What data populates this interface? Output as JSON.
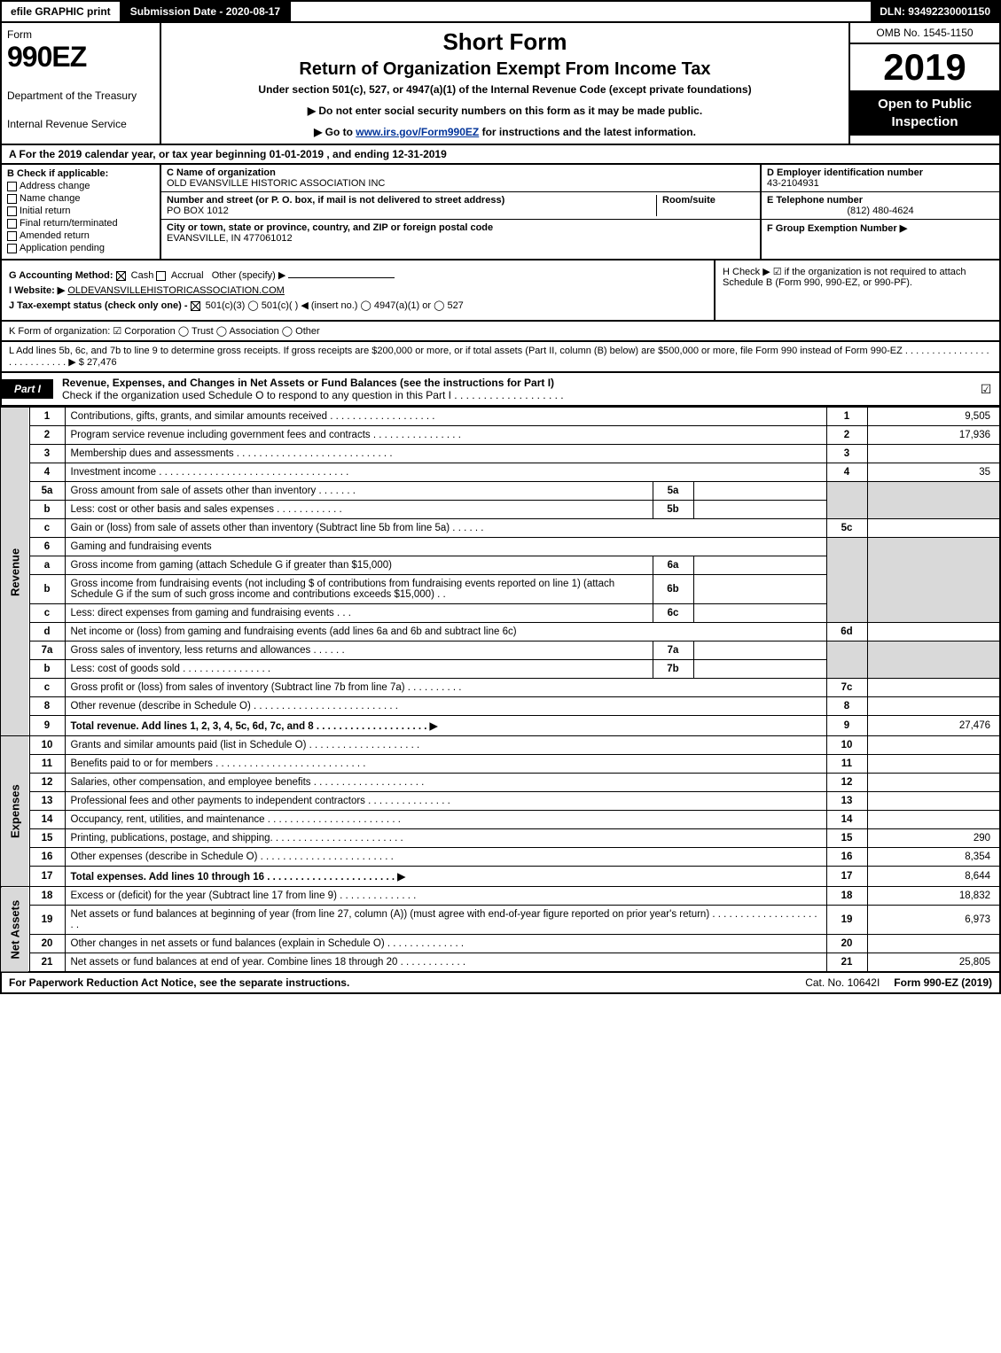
{
  "topbar": {
    "efile": "efile GRAPHIC print",
    "submission": "Submission Date - 2020-08-17",
    "dln": "DLN: 93492230001150"
  },
  "header": {
    "form_word": "Form",
    "form_no": "990EZ",
    "dept1": "Department of the Treasury",
    "dept2": "Internal Revenue Service",
    "title1": "Short Form",
    "title2": "Return of Organization Exempt From Income Tax",
    "subtitle": "Under section 501(c), 527, or 4947(a)(1) of the Internal Revenue Code (except private foundations)",
    "note1": "▶ Do not enter social security numbers on this form as it may be made public.",
    "note2_pre": "▶ Go to ",
    "note2_link": "www.irs.gov/Form990EZ",
    "note2_post": " for instructions and the latest information.",
    "omb": "OMB No. 1545-1150",
    "year": "2019",
    "open": "Open to Public Inspection"
  },
  "row_a": "A For the 2019 calendar year, or tax year beginning 01-01-2019 , and ending 12-31-2019",
  "col_b": {
    "title": "B Check if applicable:",
    "opts": [
      "Address change",
      "Name change",
      "Initial return",
      "Final return/terminated",
      "Amended return",
      "Application pending"
    ]
  },
  "col_c": {
    "c_label": "C Name of organization",
    "c_name": "OLD EVANSVILLE HISTORIC ASSOCIATION INC",
    "addr_label": "Number and street (or P. O. box, if mail is not delivered to street address)",
    "addr": "PO BOX 1012",
    "room_label": "Room/suite",
    "city_label": "City or town, state or province, country, and ZIP or foreign postal code",
    "city": "EVANSVILLE, IN  477061012"
  },
  "col_de": {
    "d_label": "D Employer identification number",
    "d_val": "43-2104931",
    "e_label": "E Telephone number",
    "e_val": "(812) 480-4624",
    "f_label": "F Group Exemption Number ▶"
  },
  "below": {
    "g": "G Accounting Method:",
    "g_cash": "Cash",
    "g_accrual": "Accrual",
    "g_other": "Other (specify) ▶",
    "i": "I Website: ▶",
    "i_val": "OLDEVANSVILLEHISTORICASSOCIATION.COM",
    "j": "J Tax-exempt status (check only one) -",
    "j_opts": "501(c)(3)   ◯ 501(c)( ) ◀ (insert no.)  ◯ 4947(a)(1) or  ◯ 527",
    "h": "H Check ▶ ☑ if the organization is not required to attach Schedule B (Form 990, 990-EZ, or 990-PF)."
  },
  "k": "K Form of organization:   ☑ Corporation   ◯ Trust   ◯ Association   ◯ Other",
  "l": {
    "text": "L Add lines 5b, 6c, and 7b to line 9 to determine gross receipts. If gross receipts are $200,000 or more, or if total assets (Part II, column (B) below) are $500,000 or more, file Form 990 instead of Form 990-EZ  .  .  .  .  .  .  .  .  .  .  .  .  .  .  .  .  .  .  .  .  .  .  .  .  .  .  .   ▶ $ ",
    "val": "27,476"
  },
  "part1": {
    "tag": "Part I",
    "title": "Revenue, Expenses, and Changes in Net Assets or Fund Balances (see the instructions for Part I)",
    "sub": "Check if the organization used Schedule O to respond to any question in this Part I  .  .  .  .  .  .  .  .  .  .  .  .  .  .  .  .  .  .  .",
    "check": "☑"
  },
  "sections": {
    "revenue": "Revenue",
    "expenses": "Expenses",
    "netassets": "Net Assets"
  },
  "lines": {
    "1": {
      "d": "Contributions, gifts, grants, and similar amounts received  .  .  .  .  .  .  .  .  .  .  .  .  .  .  .  .  .  .  .",
      "n": "1",
      "v": "9,505"
    },
    "2": {
      "d": "Program service revenue including government fees and contracts  .  .  .  .  .  .  .  .  .  .  .  .  .  .  .  .",
      "n": "2",
      "v": "17,936"
    },
    "3": {
      "d": "Membership dues and assessments  .  .  .  .  .  .  .  .  .  .  .  .  .  .  .  .  .  .  .  .  .  .  .  .  .  .  .  .",
      "n": "3",
      "v": ""
    },
    "4": {
      "d": "Investment income  .  .  .  .  .  .  .  .  .  .  .  .  .  .  .  .  .  .  .  .  .  .  .  .  .  .  .  .  .  .  .  .  .  .",
      "n": "4",
      "v": "35"
    },
    "5a": {
      "d": "Gross amount from sale of assets other than inventory  .  .  .  .  .  .  .",
      "sn": "5a"
    },
    "5b": {
      "d": "Less: cost or other basis and sales expenses  .  .  .  .  .  .  .  .  .  .  .  .",
      "sn": "5b"
    },
    "5c": {
      "d": "Gain or (loss) from sale of assets other than inventory (Subtract line 5b from line 5a)  .  .  .  .  .  .",
      "n": "5c",
      "v": ""
    },
    "6": {
      "d": "Gaming and fundraising events"
    },
    "6a": {
      "d": "Gross income from gaming (attach Schedule G if greater than $15,000)",
      "sn": "6a"
    },
    "6b": {
      "d": "Gross income from fundraising events (not including $                      of contributions from fundraising events reported on line 1) (attach Schedule G if the sum of such gross income and contributions exceeds $15,000)    .  .",
      "sn": "6b"
    },
    "6c": {
      "d": "Less: direct expenses from gaming and fundraising events     .  .  .",
      "sn": "6c"
    },
    "6d": {
      "d": "Net income or (loss) from gaming and fundraising events (add lines 6a and 6b and subtract line 6c)",
      "n": "6d",
      "v": ""
    },
    "7a": {
      "d": "Gross sales of inventory, less returns and allowances  .  .  .  .  .  .",
      "sn": "7a"
    },
    "7b": {
      "d": "Less: cost of goods sold       .  .  .  .  .  .  .  .  .  .  .  .  .  .  .  .",
      "sn": "7b"
    },
    "7c": {
      "d": "Gross profit or (loss) from sales of inventory (Subtract line 7b from line 7a)  .  .  .  .  .  .  .  .  .  .",
      "n": "7c",
      "v": ""
    },
    "8": {
      "d": "Other revenue (describe in Schedule O)  .  .  .  .  .  .  .  .  .  .  .  .  .  .  .  .  .  .  .  .  .  .  .  .  .  .",
      "n": "8",
      "v": ""
    },
    "9": {
      "d": "Total revenue. Add lines 1, 2, 3, 4, 5c, 6d, 7c, and 8  .  .  .  .  .  .  .  .  .  .  .  .  .  .  .  .  .  .  .  . ▶",
      "n": "9",
      "v": "27,476",
      "bold": true
    },
    "10": {
      "d": "Grants and similar amounts paid (list in Schedule O)  .  .  .  .  .  .  .  .  .  .  .  .  .  .  .  .  .  .  .  .",
      "n": "10",
      "v": ""
    },
    "11": {
      "d": "Benefits paid to or for members    .  .  .  .  .  .  .  .  .  .  .  .  .  .  .  .  .  .  .  .  .  .  .  .  .  .  .",
      "n": "11",
      "v": ""
    },
    "12": {
      "d": "Salaries, other compensation, and employee benefits  .  .  .  .  .  .  .  .  .  .  .  .  .  .  .  .  .  .  .  .",
      "n": "12",
      "v": ""
    },
    "13": {
      "d": "Professional fees and other payments to independent contractors  .  .  .  .  .  .  .  .  .  .  .  .  .  .  .",
      "n": "13",
      "v": ""
    },
    "14": {
      "d": "Occupancy, rent, utilities, and maintenance  .  .  .  .  .  .  .  .  .  .  .  .  .  .  .  .  .  .  .  .  .  .  .  .",
      "n": "14",
      "v": ""
    },
    "15": {
      "d": "Printing, publications, postage, and shipping.  .  .  .  .  .  .  .  .  .  .  .  .  .  .  .  .  .  .  .  .  .  .  .",
      "n": "15",
      "v": "290"
    },
    "16": {
      "d": "Other expenses (describe in Schedule O)    .  .  .  .  .  .  .  .  .  .  .  .  .  .  .  .  .  .  .  .  .  .  .  .",
      "n": "16",
      "v": "8,354"
    },
    "17": {
      "d": "Total expenses. Add lines 10 through 16    .  .  .  .  .  .  .  .  .  .  .  .  .  .  .  .  .  .  .  .  .  .  . ▶",
      "n": "17",
      "v": "8,644",
      "bold": true
    },
    "18": {
      "d": "Excess or (deficit) for the year (Subtract line 17 from line 9)       .  .  .  .  .  .  .  .  .  .  .  .  .  .",
      "n": "18",
      "v": "18,832"
    },
    "19": {
      "d": "Net assets or fund balances at beginning of year (from line 27, column (A)) (must agree with end-of-year figure reported on prior year's return)  .  .  .  .  .  .  .  .  .  .  .  .  .  .  .  .  .  .  .  .  .",
      "n": "19",
      "v": "6,973"
    },
    "20": {
      "d": "Other changes in net assets or fund balances (explain in Schedule O)  .  .  .  .  .  .  .  .  .  .  .  .  .  .",
      "n": "20",
      "v": ""
    },
    "21": {
      "d": "Net assets or fund balances at end of year. Combine lines 18 through 20  .  .  .  .  .  .  .  .  .  .  .  .",
      "n": "21",
      "v": "25,805"
    }
  },
  "footer": {
    "left": "For Paperwork Reduction Act Notice, see the separate instructions.",
    "mid": "Cat. No. 10642I",
    "right": "Form 990-EZ (2019)"
  }
}
